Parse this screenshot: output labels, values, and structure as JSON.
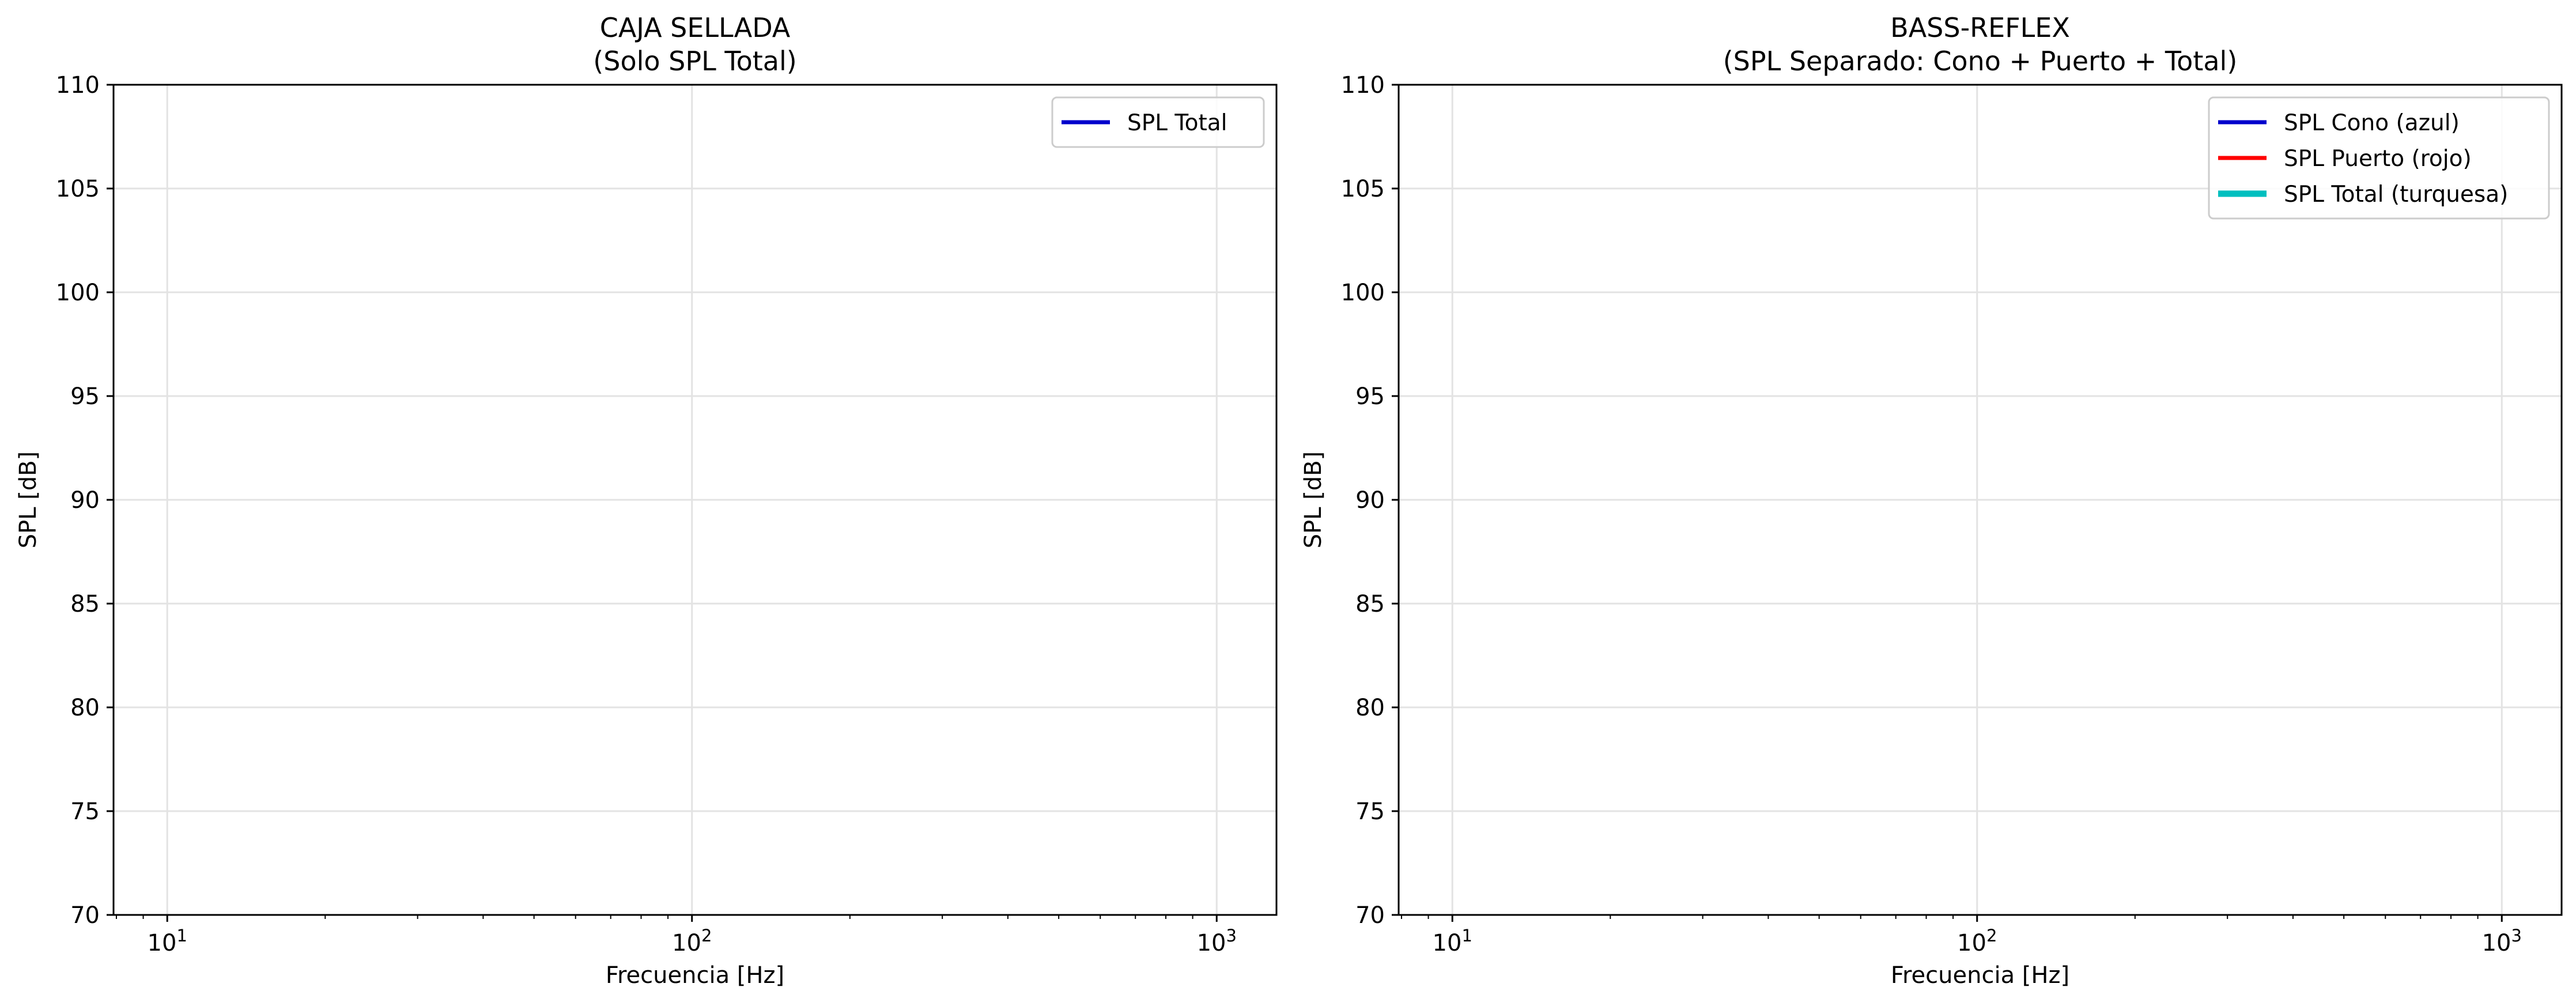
{
  "chart_data": [
    {
      "type": "line",
      "title_line1": "CAJA SELLADA",
      "title_line2": "(Solo SPL Total)",
      "xlabel": "Frecuencia [Hz]",
      "ylabel": "SPL [dB]",
      "xscale": "log",
      "xlim": [
        7.9,
        1300
      ],
      "ylim": [
        70,
        110
      ],
      "x_ticks": [
        10,
        100,
        1000
      ],
      "x_tick_labels": [
        {
          "base": "10",
          "exp": "1"
        },
        {
          "base": "10",
          "exp": "2"
        },
        {
          "base": "10",
          "exp": "3"
        }
      ],
      "y_ticks": [
        70,
        75,
        80,
        85,
        90,
        95,
        100,
        105,
        110
      ],
      "grid": true,
      "legend_position": "upper right",
      "series": [
        {
          "name": "SPL Total",
          "color": "#0000cc",
          "x": [],
          "y": []
        }
      ]
    },
    {
      "type": "line",
      "title_line1": "BASS-REFLEX",
      "title_line2": "(SPL Separado: Cono + Puerto + Total)",
      "xlabel": "Frecuencia [Hz]",
      "ylabel": "SPL [dB]",
      "xscale": "log",
      "xlim": [
        7.9,
        1300
      ],
      "ylim": [
        70,
        110
      ],
      "x_ticks": [
        10,
        100,
        1000
      ],
      "x_tick_labels": [
        {
          "base": "10",
          "exp": "1"
        },
        {
          "base": "10",
          "exp": "2"
        },
        {
          "base": "10",
          "exp": "3"
        }
      ],
      "y_ticks": [
        70,
        75,
        80,
        85,
        90,
        95,
        100,
        105,
        110
      ],
      "grid": true,
      "legend_position": "upper right",
      "series": [
        {
          "name": "SPL Cono (azul)",
          "color": "#0000cc",
          "x": [],
          "y": []
        },
        {
          "name": "SPL Puerto (rojo)",
          "color": "#ff0000",
          "x": [],
          "y": []
        },
        {
          "name": "SPL Total (turquesa)",
          "color": "#00bfbf",
          "x": [],
          "y": []
        }
      ]
    }
  ]
}
